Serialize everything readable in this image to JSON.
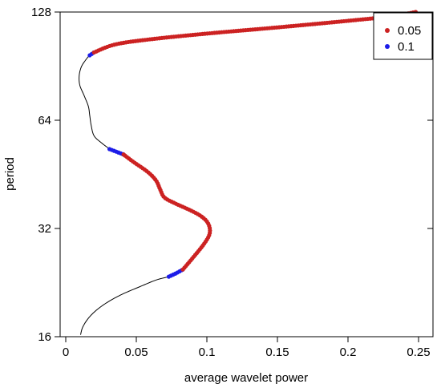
{
  "chart_data": {
    "type": "scatter",
    "title": "",
    "xlabel": "average wavelet power",
    "ylabel": "period",
    "xlim": [
      0,
      0.25
    ],
    "ylim": [
      16,
      128
    ],
    "y_scale": "log2",
    "x_ticks": [
      {
        "value": 0,
        "label": "0"
      },
      {
        "value": 0.05,
        "label": "0.05"
      },
      {
        "value": 0.1,
        "label": "0.1"
      },
      {
        "value": 0.15,
        "label": "0.15"
      },
      {
        "value": 0.2,
        "label": "0.2"
      },
      {
        "value": 0.25,
        "label": "0.25"
      }
    ],
    "y_ticks": [
      {
        "value": 16,
        "label": "16"
      },
      {
        "value": 32,
        "label": "32"
      },
      {
        "value": 64,
        "label": "64"
      },
      {
        "value": 128,
        "label": "128"
      }
    ],
    "grid": false,
    "legend": {
      "position": "top-right",
      "entries": [
        {
          "label": "0.05",
          "color": "#cc2222"
        },
        {
          "label": "0.1",
          "color": "#1c1ce8"
        }
      ]
    },
    "series": [
      {
        "kind": "line",
        "color": "#000000",
        "points": [
          [
            0.0105,
            16.2
          ],
          [
            0.012,
            17.0
          ],
          [
            0.016,
            18.0
          ],
          [
            0.022,
            19.0
          ],
          [
            0.03,
            20.0
          ],
          [
            0.04,
            21.0
          ],
          [
            0.052,
            22.0
          ],
          [
            0.064,
            23.0
          ],
          [
            0.074,
            23.6
          ],
          [
            0.082,
            24.6
          ],
          [
            0.09,
            26.5
          ],
          [
            0.098,
            29.0
          ],
          [
            0.102,
            31.0
          ],
          [
            0.101,
            33.0
          ],
          [
            0.096,
            34.6
          ],
          [
            0.088,
            36.0
          ],
          [
            0.078,
            37.5
          ],
          [
            0.07,
            39.0
          ],
          [
            0.067,
            41.0
          ],
          [
            0.064,
            43.5
          ],
          [
            0.058,
            46.0
          ],
          [
            0.048,
            49.0
          ],
          [
            0.04,
            51.0
          ],
          [
            0.032,
            53.0
          ],
          [
            0.025,
            55.5
          ],
          [
            0.02,
            58.0
          ],
          [
            0.018,
            62.0
          ],
          [
            0.017,
            66.0
          ],
          [
            0.016,
            70.0
          ],
          [
            0.013,
            75.0
          ],
          [
            0.01,
            80.0
          ],
          [
            0.0095,
            85.0
          ],
          [
            0.011,
            90.0
          ],
          [
            0.014,
            94.0
          ],
          [
            0.017,
            97.0
          ],
          [
            0.022,
            100.0
          ],
          [
            0.035,
            104.0
          ],
          [
            0.06,
            107.5
          ],
          [
            0.1,
            111.5
          ],
          [
            0.15,
            116.0
          ],
          [
            0.2,
            121.0
          ],
          [
            0.23,
            124.5
          ],
          [
            0.248,
            128.0
          ]
        ]
      },
      {
        "kind": "points",
        "label": "0.1",
        "color": "#1c1ce8",
        "segments": [
          [
            [
              0.073,
              23.5
            ],
            [
              0.078,
              24.0
            ],
            [
              0.083,
              24.6
            ]
          ],
          [
            [
              0.031,
              53.2
            ],
            [
              0.036,
              52.3
            ],
            [
              0.041,
              51.4
            ]
          ],
          [
            [
              0.017,
              97.0
            ],
            [
              0.02,
              98.8
            ]
          ]
        ]
      },
      {
        "kind": "points",
        "label": "0.05",
        "color": "#cc2222",
        "segments": [
          [
            [
              0.083,
              24.6
            ],
            [
              0.09,
              26.5
            ],
            [
              0.098,
              29.0
            ],
            [
              0.102,
              31.0
            ],
            [
              0.101,
              33.0
            ],
            [
              0.096,
              34.6
            ],
            [
              0.088,
              36.0
            ],
            [
              0.078,
              37.5
            ],
            [
              0.07,
              39.0
            ],
            [
              0.067,
              41.0
            ],
            [
              0.064,
              43.5
            ],
            [
              0.058,
              46.0
            ],
            [
              0.048,
              49.0
            ],
            [
              0.041,
              51.4
            ]
          ],
          [
            [
              0.02,
              98.8
            ],
            [
              0.035,
              104.0
            ],
            [
              0.06,
              107.5
            ],
            [
              0.1,
              111.5
            ],
            [
              0.15,
              116.0
            ],
            [
              0.2,
              121.0
            ],
            [
              0.23,
              124.5
            ],
            [
              0.248,
              128.0
            ]
          ]
        ]
      }
    ]
  }
}
